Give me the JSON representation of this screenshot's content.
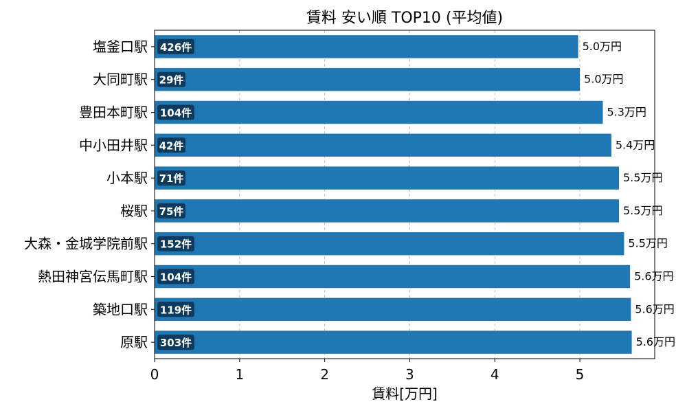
{
  "chart_data": {
    "type": "bar",
    "orientation": "horizontal",
    "title": "賃料 安い順 TOP10 (平均値)",
    "xlabel": "賃料[万円]",
    "ylabel": "",
    "xlim": [
      0,
      5.88
    ],
    "xticks": [
      0,
      1,
      2,
      3,
      4,
      5
    ],
    "grid": "x-dashed",
    "categories": [
      "塩釜口駅",
      "大同町駅",
      "豊田本町駅",
      "中小田井駅",
      "小本駅",
      "桜駅",
      "大森・金城学院前駅",
      "熱田神宮伝馬町駅",
      "築地口駅",
      "原駅"
    ],
    "values": [
      4.98,
      5.0,
      5.27,
      5.37,
      5.46,
      5.46,
      5.52,
      5.59,
      5.6,
      5.61
    ],
    "value_labels": [
      "5.0万円",
      "5.0万円",
      "5.3万円",
      "5.4万円",
      "5.5万円",
      "5.5万円",
      "5.5万円",
      "5.6万円",
      "5.6万円",
      "5.6万円"
    ],
    "count_labels": [
      "426件",
      "29件",
      "104件",
      "42件",
      "71件",
      "75件",
      "152件",
      "104件",
      "119件",
      "303件"
    ],
    "colors": {
      "bar": "#1f77b4",
      "badge": "#0e3a5c",
      "badge_text": "#ffffff",
      "grid": "#b0b0b0",
      "text": "#000000"
    }
  }
}
